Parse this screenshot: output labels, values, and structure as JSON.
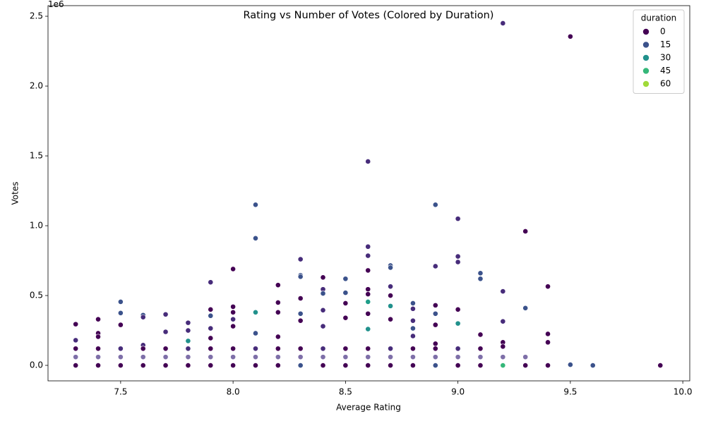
{
  "chart_data": {
    "type": "scatter",
    "title": "Rating vs Number of Votes (Colored by Duration)",
    "x_label": "Average Rating",
    "y_label": "Votes",
    "y_offset_label": "1e6",
    "xlim": [
      7.177,
      10.031
    ],
    "ylim": [
      -111000,
      2576000
    ],
    "xticks": [
      7.5,
      {
        "value": 8.0,
        "label": "8.0"
      },
      8.5,
      {
        "value": 9.0,
        "label": "9.0"
      },
      9.5,
      {
        "value": 10.0,
        "label": "10.0"
      }
    ],
    "yticks": [
      {
        "value": 0,
        "label": "0.0"
      },
      {
        "value": 500000,
        "label": "0.5"
      },
      {
        "value": 1000000,
        "label": "1.0"
      },
      {
        "value": 1500000,
        "label": "1.5"
      },
      {
        "value": 2000000,
        "label": "2.0"
      },
      {
        "value": 2500000,
        "label": "2.5"
      }
    ],
    "legend": {
      "title": "duration",
      "position": "upper right",
      "entries": [
        {
          "label": 0,
          "color": "#440154"
        },
        {
          "label": 15,
          "color": "#3b528b"
        },
        {
          "label": 30,
          "color": "#21918c"
        },
        {
          "label": 45,
          "color": "#35b779"
        },
        {
          "label": 60,
          "color": "#a0da39"
        }
      ]
    },
    "x": [
      9.2,
      9.5,
      8.6,
      8.1,
      8.9,
      9.0,
      9.3,
      8.1,
      8.6,
      9.0,
      8.6,
      8.3,
      9.0,
      8.7,
      8.7,
      8.9,
      8.0,
      8.6,
      9.1,
      9.1,
      8.3,
      8.3,
      8.4,
      8.5,
      7.9,
      8.2,
      8.7,
      9.4,
      8.4,
      8.6,
      9.2,
      8.5,
      8.4,
      8.6,
      8.7,
      8.3,
      7.5,
      8.6,
      8.2,
      8.8,
      8.5,
      8.9,
      8.7,
      8.0,
      9.3,
      8.8,
      9.0,
      7.9,
      8.4,
      8.1,
      8.0,
      7.5,
      8.2,
      8.6,
      8.9,
      8.3,
      7.7,
      7.6,
      7.6,
      7.9,
      8.5,
      7.4,
      8.0,
      8.7,
      8.8,
      8.3,
      9.2,
      7.8,
      9.0,
      7.3,
      7.5,
      8.9,
      8.0,
      8.4,
      8.6,
      8.8,
      7.9,
      7.8,
      7.7,
      8.1,
      7.4,
      9.4,
      9.1,
      8.8,
      7.4,
      8.2,
      7.9,
      7.3,
      9.4,
      9.2,
      7.6,
      8.9,
      9.2,
      7.8,
      9.5,
      9.6,
      9.9,
      9.2,
      8.3,
      8.9,
      9.4,
      9.3,
      7.3,
      7.4,
      7.5,
      7.6,
      7.7,
      7.8,
      7.9,
      8.0,
      8.1,
      8.2,
      8.4,
      8.5,
      8.6,
      8.7,
      8.8,
      9.0,
      9.1,
      7.3,
      7.4,
      7.5,
      7.6,
      7.7,
      7.8,
      7.9,
      8.0,
      8.1,
      8.2,
      8.3,
      8.4,
      8.5,
      8.6,
      8.7,
      8.8,
      8.9,
      9.0,
      9.1,
      9.2,
      9.3,
      7.3,
      7.4,
      7.5,
      7.6,
      7.7,
      7.8,
      7.9,
      8.0,
      8.1,
      8.2,
      8.3,
      8.4,
      8.5,
      8.6,
      8.7,
      8.8,
      8.9,
      9.0,
      9.1
    ],
    "values": [
      2450000,
      2355000,
      1460000,
      1150000,
      1150000,
      1050000,
      960000,
      910000,
      850000,
      780000,
      785000,
      760000,
      740000,
      715000,
      700000,
      710000,
      690000,
      680000,
      660000,
      620000,
      645000,
      635000,
      630000,
      620000,
      595000,
      575000,
      565000,
      565000,
      545000,
      545000,
      530000,
      520000,
      515000,
      510000,
      500000,
      480000,
      455000,
      455000,
      450000,
      445000,
      445000,
      430000,
      425000,
      420000,
      410000,
      405000,
      400000,
      400000,
      395000,
      380000,
      380000,
      375000,
      380000,
      370000,
      370000,
      370000,
      365000,
      360000,
      345000,
      355000,
      340000,
      330000,
      330000,
      330000,
      320000,
      320000,
      315000,
      305000,
      300000,
      295000,
      290000,
      290000,
      280000,
      280000,
      260000,
      265000,
      265000,
      250000,
      240000,
      230000,
      230000,
      225000,
      220000,
      210000,
      205000,
      205000,
      195000,
      180000,
      165000,
      165000,
      145000,
      155000,
      135000,
      175000,
      5000,
      0,
      0,
      0,
      0,
      0,
      0,
      0,
      0,
      0,
      0,
      0,
      0,
      0,
      0,
      0,
      0,
      0,
      0,
      0,
      0,
      0,
      0,
      0,
      0,
      60000,
      60000,
      60000,
      60000,
      60000,
      60000,
      60000,
      60000,
      60000,
      60000,
      60000,
      60000,
      60000,
      60000,
      60000,
      60000,
      60000,
      60000,
      60000,
      60000,
      60000,
      120000,
      120000,
      120000,
      120000,
      120000,
      120000,
      120000,
      120000,
      120000,
      120000,
      120000,
      120000,
      120000,
      120000,
      120000,
      120000,
      120000,
      120000,
      120000
    ],
    "colors": [
      "#472c7a",
      "#440154",
      "#472c7a",
      "#3b528b",
      "#3b528b",
      "#472c7a",
      "#440154",
      "#3b528b",
      "#472c7a",
      "#472c7a",
      "#472c7a",
      "#472c7a",
      "#472c7a",
      "#3b528b",
      "#3b528b",
      "#472c7a",
      "#440154",
      "#440154",
      "#3b528b",
      "#3b528b",
      "#3b528b",
      "#3b528b",
      "#440154",
      "#3b528b",
      "#472c7a",
      "#440154",
      "#472c7a",
      "#440154",
      "#472c7a",
      "#440154",
      "#472c7a",
      "#3b528b",
      "#3b528b",
      "#440154",
      "#440154",
      "#440154",
      "#3b528b",
      "#1f9e89",
      "#440154",
      "#3b528b",
      "#440154",
      "#440154",
      "#21918c",
      "#440154",
      "#3b528b",
      "#472c7a",
      "#440154",
      "#440154",
      "#472c7a",
      "#21918c",
      "#440154",
      "#3b528b",
      "#440154",
      "#440154",
      "#3b528b",
      "#3b528b",
      "#472c7a",
      "#3b528b",
      "#472c7a",
      "#3b528b",
      "#440154",
      "#440154",
      "#472c7a",
      "#440154",
      "#472c7a",
      "#440154",
      "#472c7a",
      "#472c7a",
      "#21918c",
      "#440154",
      "#440154",
      "#440154",
      "#440154",
      "#472c7a",
      "#21918c",
      "#3b528b",
      "#472c7a",
      "#472c7a",
      "#472c7a",
      "#3b528b",
      "#440154",
      "#440154",
      "#440154",
      "#472c7a",
      "#440154",
      "#440154",
      "#440154",
      "#472c7a",
      "#440154",
      "#440154",
      "#472c7a",
      "#440154",
      "#440154",
      "#21918c",
      "#3b528b",
      "#3b528b",
      "#440154",
      "#35b779",
      "#3b528b",
      "#3b528b",
      "#440154",
      "#440154",
      "#440154",
      "#440154",
      "#440154",
      "#440154",
      "#440154",
      "#440154",
      "#440154",
      "#440154",
      "#440154",
      "#440154",
      "#440154",
      "#440154",
      "#440154",
      "#440154",
      "#440154",
      "#440154",
      "#440154",
      "#7e6fa8",
      "#7e6fa8",
      "#7e6fa8",
      "#7e6fa8",
      "#7e6fa8",
      "#7e6fa8",
      "#7e6fa8",
      "#7e6fa8",
      "#7e6fa8",
      "#7e6fa8",
      "#7e6fa8",
      "#7e6fa8",
      "#7e6fa8",
      "#7e6fa8",
      "#7e6fa8",
      "#7e6fa8",
      "#7e6fa8",
      "#7e6fa8",
      "#7e6fa8",
      "#7e6fa8",
      "#7e6fa8",
      "#440154",
      "#440154",
      "#472c7a",
      "#440154",
      "#440154",
      "#472c7a",
      "#440154",
      "#440154",
      "#472c7a",
      "#440154",
      "#440154",
      "#472c7a",
      "#440154",
      "#440154",
      "#472c7a",
      "#440154",
      "#440154",
      "#472c7a",
      "#440154"
    ]
  }
}
